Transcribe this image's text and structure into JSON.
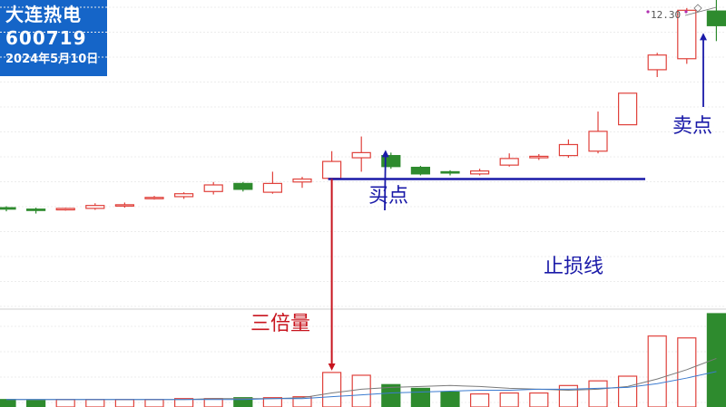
{
  "stock": {
    "name": "大连热电",
    "code": "600719",
    "date": "2024年5月10日"
  },
  "price_readout": "12.30",
  "annotations": {
    "buy_point": "买点",
    "sell_point": "卖点",
    "stop_loss_line": "止损线",
    "triple_volume": "三倍量"
  },
  "colors": {
    "up": "#e0413b",
    "down": "#2e8b2e",
    "annotation_blue": "#1a1aa8",
    "annotation_red": "#c8141e",
    "stop_line": "#1a1aa8",
    "panel_bg": "#1565c8"
  },
  "chart_data": {
    "type": "candlestick",
    "price_ylim": [
      0,
      420
    ],
    "volume_ylim": [
      0,
      100
    ],
    "stop_loss_level": 176,
    "candles": [
      {
        "o": 137,
        "c": 135,
        "h": 139,
        "l": 132
      },
      {
        "o": 135,
        "c": 134,
        "h": 137,
        "l": 129
      },
      {
        "o": 134,
        "c": 136,
        "h": 137,
        "l": 133
      },
      {
        "o": 136,
        "c": 140,
        "h": 143,
        "l": 134
      },
      {
        "o": 140,
        "c": 141,
        "h": 144,
        "l": 137
      },
      {
        "o": 150,
        "c": 151,
        "h": 153,
        "l": 148
      },
      {
        "o": 152,
        "c": 156,
        "h": 158,
        "l": 149
      },
      {
        "o": 159,
        "c": 168,
        "h": 172,
        "l": 155
      },
      {
        "o": 170,
        "c": 162,
        "h": 172,
        "l": 159
      },
      {
        "o": 158,
        "c": 170,
        "h": 186,
        "l": 156
      },
      {
        "o": 172,
        "c": 176,
        "h": 179,
        "l": 164
      },
      {
        "o": 177,
        "c": 200,
        "h": 214,
        "l": 171
      },
      {
        "o": 205,
        "c": 212,
        "h": 234,
        "l": 186
      },
      {
        "o": 208,
        "c": 193,
        "h": 212,
        "l": 190
      },
      {
        "o": 192,
        "c": 183,
        "h": 194,
        "l": 181
      },
      {
        "o": 186,
        "c": 185,
        "h": 188,
        "l": 181
      },
      {
        "o": 183,
        "c": 187,
        "h": 190,
        "l": 181
      },
      {
        "o": 195,
        "c": 204,
        "h": 211,
        "l": 193
      },
      {
        "o": 205,
        "c": 207,
        "h": 210,
        "l": 202
      },
      {
        "o": 208,
        "c": 223,
        "h": 230,
        "l": 205
      },
      {
        "o": 214,
        "c": 241,
        "h": 268,
        "l": 211
      },
      {
        "o": 250,
        "c": 293,
        "h": 293,
        "l": 250
      },
      {
        "o": 325,
        "c": 345,
        "h": 348,
        "l": 315
      },
      {
        "o": 340,
        "c": 406,
        "h": 409,
        "l": 333
      },
      {
        "o": 405,
        "c": 385,
        "h": 436,
        "l": 364
      }
    ],
    "volume": [
      8,
      7,
      8,
      8,
      8,
      8,
      9,
      9,
      10,
      10,
      11,
      37,
      34,
      24,
      20,
      16,
      14,
      15,
      15,
      23,
      28,
      33,
      76,
      74,
      100
    ],
    "volume_ma": [
      {
        "points": [
          8,
          8,
          8,
          8,
          8,
          8,
          8,
          9,
          9,
          9,
          10,
          15,
          19,
          21,
          22,
          23,
          22,
          20,
          19,
          18,
          19,
          22,
          30,
          40,
          52
        ],
        "color": "#7a7a7a"
      },
      {
        "points": [
          8,
          8,
          8,
          8,
          8,
          8,
          8,
          8,
          8,
          9,
          9,
          11,
          13,
          15,
          16,
          17,
          18,
          18,
          19,
          19,
          20,
          21,
          25,
          31,
          38
        ],
        "color": "#3b7bd0"
      }
    ]
  }
}
